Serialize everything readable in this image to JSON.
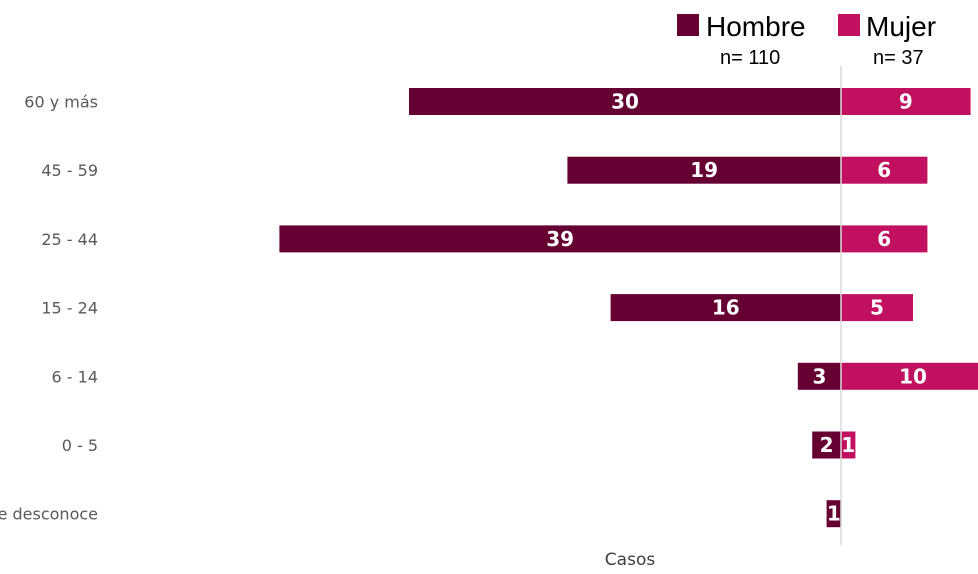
{
  "chart_data": {
    "type": "bar",
    "orientation": "horizontal-diverging",
    "categories": [
      "60 y más",
      "45 - 59",
      "25 - 44",
      "15 - 24",
      "6 - 14",
      "0 - 5",
      "Se desconoce"
    ],
    "series": [
      {
        "name": "Hombre",
        "n_label": "n= 110",
        "color": "#660033",
        "values": [
          30,
          19,
          39,
          16,
          3,
          2,
          1
        ]
      },
      {
        "name": "Mujer",
        "n_label": "n= 37",
        "color": "#C0105F",
        "values": [
          9,
          6,
          6,
          5,
          10,
          1,
          0
        ]
      }
    ],
    "xlabel": "Casos",
    "legend_position": "top-right",
    "axis_color": "#D9D9D9"
  }
}
